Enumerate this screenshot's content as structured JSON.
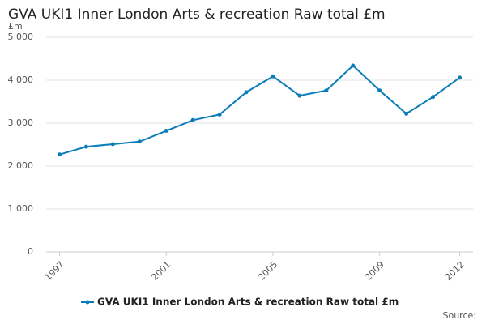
{
  "chart_data": {
    "type": "line",
    "title": "GVA UKI1 Inner London Arts & recreation Raw total £m",
    "y_unit": "£m",
    "source": "Source:",
    "x": [
      1997,
      1998,
      1999,
      2000,
      2001,
      2002,
      2003,
      2004,
      2005,
      2006,
      2007,
      2008,
      2009,
      2010,
      2011,
      2012
    ],
    "series": [
      {
        "name": "GVA UKI1 Inner London Arts & recreation Raw total £m",
        "color": "#0b7cba",
        "values": [
          2270,
          2450,
          2510,
          2570,
          2820,
          3070,
          3200,
          3720,
          4090,
          3640,
          3760,
          4340,
          3760,
          3220,
          3610,
          4060
        ]
      }
    ],
    "xlim": [
      1996.5,
      2012.5
    ],
    "xticks": [
      1997,
      2001,
      2005,
      2009,
      2012
    ],
    "ylim": [
      0,
      5000
    ],
    "yticks": [
      0,
      {
        "value": 1000,
        "label": "1 000"
      },
      {
        "value": 2000,
        "label": "2 000"
      },
      {
        "value": 3000,
        "label": "3 000"
      },
      {
        "value": 4000,
        "label": "4 000"
      },
      {
        "value": 5000,
        "label": "5 000"
      }
    ],
    "grid": true
  }
}
